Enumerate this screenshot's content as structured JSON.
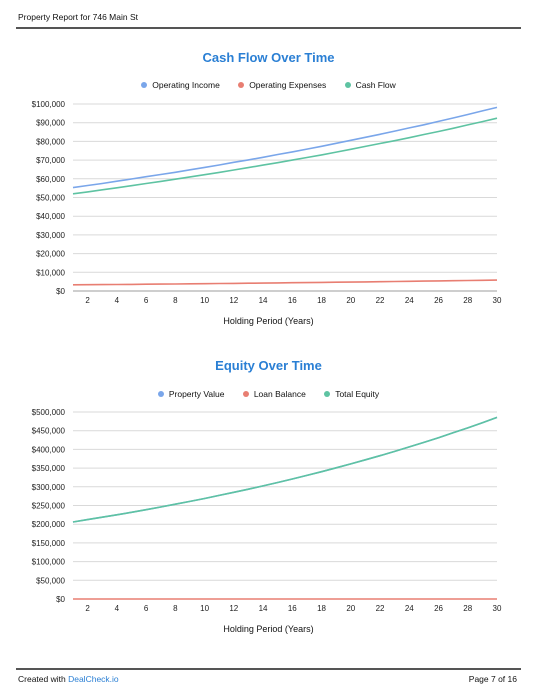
{
  "header": {
    "title": "Property Report for 746 Main St"
  },
  "footer": {
    "created_prefix": "Created with ",
    "brand": "DealCheck.io",
    "page": "Page 7 of 16"
  },
  "colors": {
    "income": "#7aa6ea",
    "expenses": "#e87e72",
    "cashflow": "#5ec3a2",
    "value": "#7aa6ea",
    "loan": "#e87e72",
    "equity": "#5ec3a2",
    "title": "#2a7fd4",
    "grid": "#d9d9d9",
    "baseline": "#9e9e9e"
  },
  "chart_data": [
    {
      "type": "line",
      "title": "Cash Flow Over Time",
      "xlabel": "Holding Period (Years)",
      "ylabel": "",
      "x": [
        1,
        2,
        3,
        4,
        5,
        6,
        7,
        8,
        9,
        10,
        11,
        12,
        13,
        14,
        15,
        16,
        17,
        18,
        19,
        20,
        21,
        22,
        23,
        24,
        25,
        26,
        27,
        28,
        29,
        30
      ],
      "xticks": [
        2,
        4,
        6,
        8,
        10,
        12,
        14,
        16,
        18,
        20,
        22,
        24,
        26,
        28,
        30
      ],
      "xlim": [
        1,
        30
      ],
      "ylim": [
        0,
        100000
      ],
      "yticks": [
        0,
        10000,
        20000,
        30000,
        40000,
        50000,
        60000,
        70000,
        80000,
        90000,
        100000
      ],
      "ytick_labels": [
        "$0",
        "$10,000",
        "$20,000",
        "$30,000",
        "$40,000",
        "$50,000",
        "$60,000",
        "$70,000",
        "$80,000",
        "$90,000",
        "$100,000"
      ],
      "grid": true,
      "legend": "top-center",
      "series": [
        {
          "name": "Operating Income",
          "color": "#7aa6ea",
          "values": [
            55300,
            56400,
            57500,
            58700,
            59900,
            61100,
            62300,
            63500,
            64800,
            66100,
            67400,
            68800,
            70100,
            71500,
            73000,
            74400,
            75900,
            77400,
            79000,
            80600,
            82200,
            83800,
            85500,
            87200,
            88900,
            90700,
            92500,
            94400,
            96300,
            98200
          ]
        },
        {
          "name": "Operating Expenses",
          "color": "#e87e72",
          "values": [
            3300,
            3350,
            3420,
            3480,
            3550,
            3620,
            3700,
            3770,
            3850,
            3920,
            4000,
            4080,
            4160,
            4250,
            4330,
            4420,
            4510,
            4600,
            4690,
            4780,
            4880,
            4970,
            5070,
            5170,
            5280,
            5380,
            5490,
            5600,
            5710,
            5830
          ]
        },
        {
          "name": "Cash Flow",
          "color": "#5ec3a2",
          "values": [
            52000,
            53000,
            54100,
            55200,
            56300,
            57500,
            58600,
            59800,
            61000,
            62200,
            63400,
            64700,
            66000,
            67300,
            68600,
            70000,
            71400,
            72800,
            74300,
            75800,
            77300,
            78900,
            80400,
            82000,
            83700,
            85300,
            87000,
            88800,
            90600,
            92400
          ]
        }
      ]
    },
    {
      "type": "line",
      "title": "Equity Over Time",
      "xlabel": "Holding Period (Years)",
      "ylabel": "",
      "x": [
        1,
        2,
        3,
        4,
        5,
        6,
        7,
        8,
        9,
        10,
        11,
        12,
        13,
        14,
        15,
        16,
        17,
        18,
        19,
        20,
        21,
        22,
        23,
        24,
        25,
        26,
        27,
        28,
        29,
        30
      ],
      "xticks": [
        2,
        4,
        6,
        8,
        10,
        12,
        14,
        16,
        18,
        20,
        22,
        24,
        26,
        28,
        30
      ],
      "xlim": [
        1,
        30
      ],
      "ylim": [
        0,
        500000
      ],
      "yticks": [
        0,
        50000,
        100000,
        150000,
        200000,
        250000,
        300000,
        350000,
        400000,
        450000,
        500000
      ],
      "ytick_labels": [
        "$0",
        "$50,000",
        "$100,000",
        "$150,000",
        "$200,000",
        "$250,000",
        "$300,000",
        "$350,000",
        "$400,000",
        "$450,000",
        "$500,000"
      ],
      "grid": true,
      "legend": "top-center",
      "series": [
        {
          "name": "Property Value",
          "color": "#7aa6ea",
          "values": [
            206000,
            212200,
            218600,
            225100,
            231900,
            238800,
            246000,
            253400,
            261000,
            268800,
            276900,
            285200,
            293700,
            302500,
            311600,
            320900,
            330600,
            340500,
            350700,
            361200,
            372100,
            383200,
            394700,
            406600,
            418800,
            431300,
            444300,
            457600,
            471300,
            485500
          ]
        },
        {
          "name": "Loan Balance",
          "color": "#e87e72",
          "values": [
            0,
            0,
            0,
            0,
            0,
            0,
            0,
            0,
            0,
            0,
            0,
            0,
            0,
            0,
            0,
            0,
            0,
            0,
            0,
            0,
            0,
            0,
            0,
            0,
            0,
            0,
            0,
            0,
            0,
            0
          ]
        },
        {
          "name": "Total Equity",
          "color": "#5ec3a2",
          "values": [
            206000,
            212200,
            218600,
            225100,
            231900,
            238800,
            246000,
            253400,
            261000,
            268800,
            276900,
            285200,
            293700,
            302500,
            311600,
            320900,
            330600,
            340500,
            350700,
            361200,
            372100,
            383200,
            394700,
            406600,
            418800,
            431300,
            444300,
            457600,
            471300,
            485500
          ]
        }
      ]
    }
  ]
}
